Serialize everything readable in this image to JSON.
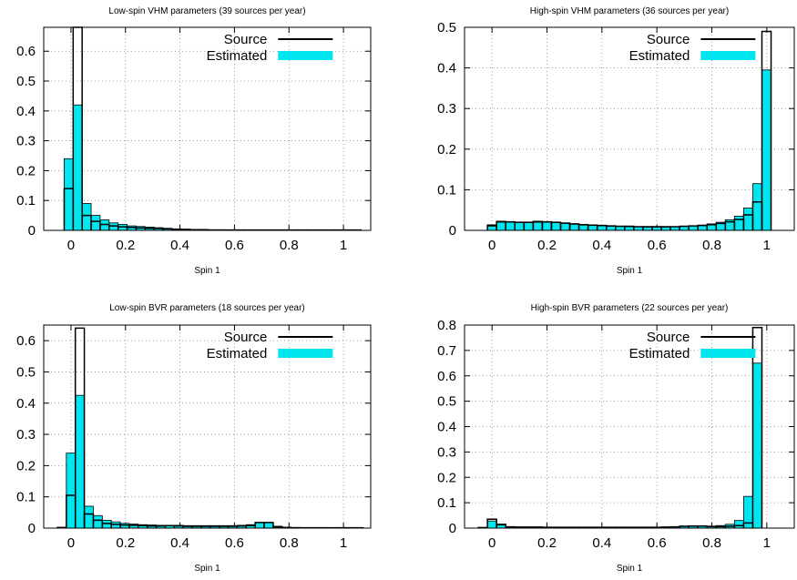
{
  "colors": {
    "source": "#000000",
    "estimated": "#00e5ee",
    "grid": "#888888",
    "frame": "#000000"
  },
  "chart_data": [
    {
      "type": "bar",
      "title": "Low-spin VHM parameters (39 sources per year)",
      "xlabel": "Spin 1",
      "ylabel": "",
      "xlim": [
        -0.1,
        1.1
      ],
      "ylim": [
        0,
        0.68
      ],
      "xticks": [
        "0",
        "0.2",
        "0.4",
        "0.6",
        "0.8",
        "1"
      ],
      "yticks": [
        "0",
        "0.1",
        "0.2",
        "0.3",
        "0.4",
        "0.5",
        "0.6"
      ],
      "grid": true,
      "legend": {
        "placement": "top-right",
        "entries": [
          "Source",
          "Estimated"
        ]
      },
      "bin_start": -0.025,
      "bin_width": 0.033,
      "series": [
        {
          "name": "Source",
          "style": "step",
          "values": [
            0.14,
            0.68,
            0.05,
            0.03,
            0.02,
            0.015,
            0.012,
            0.01,
            0.008,
            0.007,
            0.006,
            0.005,
            0.004,
            0.003,
            0.002,
            0.002,
            0.001,
            0.001,
            0.001,
            0.001,
            0.001,
            0.001,
            0.001,
            0.001,
            0.001,
            0.001,
            0.001,
            0.001,
            0.001,
            0.001,
            0.001,
            0.001,
            0.001
          ]
        },
        {
          "name": "Estimated",
          "style": "bar",
          "values": [
            0.24,
            0.42,
            0.09,
            0.05,
            0.035,
            0.025,
            0.02,
            0.015,
            0.013,
            0.011,
            0.009,
            0.007,
            0.005,
            0.004,
            0.003,
            0.003,
            0.002,
            0.002,
            0.001,
            0.001,
            0.001,
            0.001,
            0.001,
            0.001,
            0.001,
            0.001,
            0.001,
            0.001,
            0.001,
            0.001,
            0.001,
            0.001,
            0.001
          ]
        }
      ]
    },
    {
      "type": "bar",
      "title": "High-spin VHM parameters (36 sources per year)",
      "xlabel": "Spin 1",
      "ylabel": "",
      "xlim": [
        -0.1,
        1.1
      ],
      "ylim": [
        0,
        0.5
      ],
      "xticks": [
        "0",
        "0.2",
        "0.4",
        "0.6",
        "0.8",
        "1"
      ],
      "yticks": [
        "0",
        "0.1",
        "0.2",
        "0.3",
        "0.4",
        "0.5"
      ],
      "grid": true,
      "legend": {
        "placement": "top-right",
        "entries": [
          "Source",
          "Estimated"
        ]
      },
      "bin_start": -0.0167,
      "bin_width": 0.0333,
      "series": [
        {
          "name": "Source",
          "style": "step",
          "values": [
            0.013,
            0.022,
            0.021,
            0.02,
            0.02,
            0.022,
            0.021,
            0.02,
            0.018,
            0.016,
            0.014,
            0.013,
            0.012,
            0.011,
            0.01,
            0.01,
            0.009,
            0.009,
            0.009,
            0.009,
            0.009,
            0.01,
            0.011,
            0.012,
            0.014,
            0.017,
            0.021,
            0.027,
            0.038,
            0.07,
            0.49
          ]
        },
        {
          "name": "Estimated",
          "style": "bar",
          "values": [
            0.01,
            0.02,
            0.02,
            0.019,
            0.019,
            0.02,
            0.02,
            0.019,
            0.017,
            0.015,
            0.013,
            0.012,
            0.011,
            0.01,
            0.01,
            0.009,
            0.009,
            0.008,
            0.008,
            0.008,
            0.009,
            0.01,
            0.011,
            0.013,
            0.016,
            0.02,
            0.026,
            0.035,
            0.055,
            0.115,
            0.395
          ]
        }
      ]
    },
    {
      "type": "bar",
      "title": "Low-spin BVR parameters (18 sources per year)",
      "xlabel": "Spin 1",
      "ylabel": "",
      "xlim": [
        -0.1,
        1.1
      ],
      "ylim": [
        0,
        0.65
      ],
      "xticks": [
        "0",
        "0.2",
        "0.4",
        "0.6",
        "0.8",
        "1"
      ],
      "yticks": [
        "0",
        "0.1",
        "0.2",
        "0.3",
        "0.4",
        "0.5",
        "0.6"
      ],
      "grid": true,
      "legend": {
        "placement": "top-right",
        "entries": [
          "Source",
          "Estimated"
        ]
      },
      "bin_start": -0.05,
      "bin_width": 0.033,
      "series": [
        {
          "name": "Source",
          "style": "step",
          "values": [
            0.001,
            0.105,
            0.64,
            0.045,
            0.025,
            0.015,
            0.012,
            0.01,
            0.009,
            0.008,
            0.007,
            0.007,
            0.008,
            0.007,
            0.006,
            0.006,
            0.006,
            0.006,
            0.006,
            0.006,
            0.007,
            0.008,
            0.018,
            0.018,
            0.004,
            0.002,
            0.001,
            0.001,
            0.001,
            0.001,
            0.001,
            0.001,
            0.001,
            0.001
          ]
        },
        {
          "name": "Estimated",
          "style": "bar",
          "values": [
            0.003,
            0.24,
            0.425,
            0.07,
            0.04,
            0.025,
            0.02,
            0.015,
            0.013,
            0.011,
            0.01,
            0.009,
            0.009,
            0.009,
            0.008,
            0.008,
            0.008,
            0.008,
            0.008,
            0.008,
            0.009,
            0.011,
            0.018,
            0.018,
            0.006,
            0.003,
            0.002,
            0.001,
            0.001,
            0.001,
            0.001,
            0.001,
            0.001,
            0.001
          ]
        }
      ]
    },
    {
      "type": "bar",
      "title": "High-spin BVR parameters (22 sources per year)",
      "xlabel": "Spin 1",
      "ylabel": "",
      "xlim": [
        -0.1,
        1.1
      ],
      "ylim": [
        0,
        0.8
      ],
      "xticks": [
        "0",
        "0.2",
        "0.4",
        "0.6",
        "0.8",
        "1"
      ],
      "yticks": [
        "0",
        "0.1",
        "0.2",
        "0.3",
        "0.4",
        "0.5",
        "0.6",
        "0.7",
        "0.8"
      ],
      "grid": true,
      "legend": {
        "placement": "top-right",
        "entries": [
          "Source",
          "Estimated"
        ]
      },
      "bin_start": -0.05,
      "bin_width": 0.0333,
      "series": [
        {
          "name": "Source",
          "style": "step",
          "values": [
            0.002,
            0.035,
            0.015,
            0.005,
            0.004,
            0.004,
            0.004,
            0.003,
            0.003,
            0.003,
            0.003,
            0.003,
            0.003,
            0.003,
            0.003,
            0.003,
            0.003,
            0.003,
            0.003,
            0.003,
            0.004,
            0.005,
            0.007,
            0.008,
            0.008,
            0.006,
            0.006,
            0.007,
            0.01,
            0.02,
            0.79
          ]
        },
        {
          "name": "Estimated",
          "style": "bar",
          "values": [
            0.003,
            0.028,
            0.012,
            0.004,
            0.003,
            0.003,
            0.003,
            0.003,
            0.003,
            0.003,
            0.003,
            0.003,
            0.003,
            0.003,
            0.003,
            0.003,
            0.003,
            0.003,
            0.003,
            0.003,
            0.004,
            0.005,
            0.008,
            0.009,
            0.009,
            0.008,
            0.01,
            0.015,
            0.03,
            0.125,
            0.65
          ]
        }
      ]
    }
  ]
}
